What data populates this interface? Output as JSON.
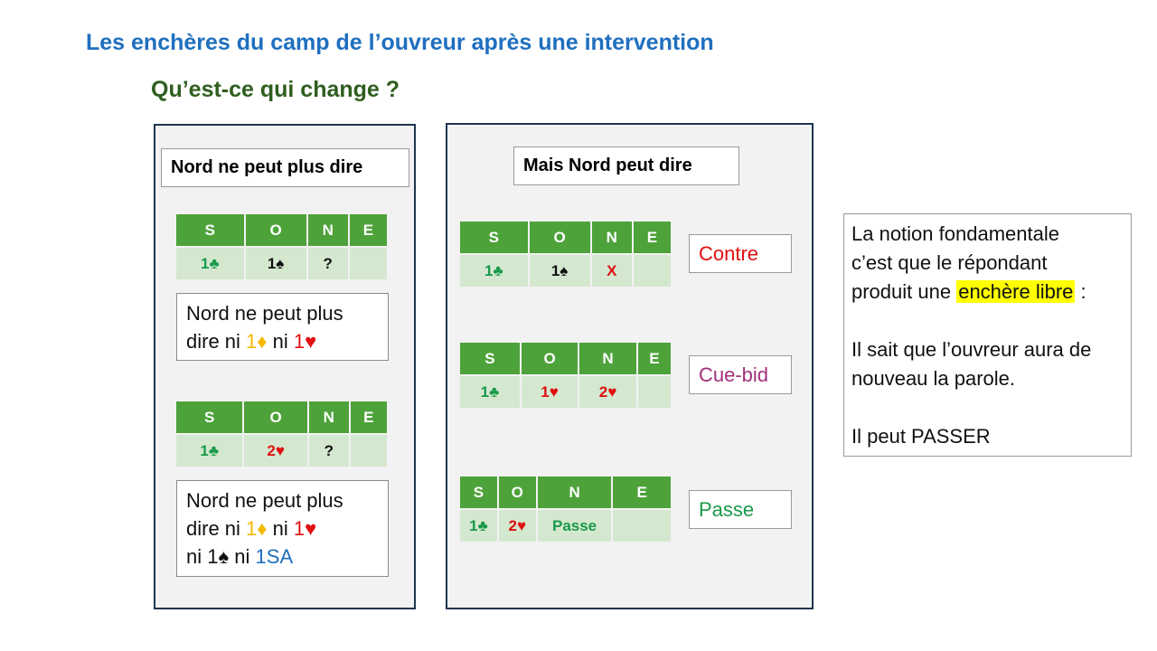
{
  "header": {
    "title": "Les enchères du camp de l’ouvreur après une intervention",
    "subtitle": "Qu’est-ce qui change ?"
  },
  "columns": [
    "S",
    "O",
    "N",
    "E"
  ],
  "left_panel": {
    "heading": "Nord ne peut plus dire",
    "table1": {
      "cells": [
        "1♣",
        "1♠",
        "?",
        ""
      ]
    },
    "note1": {
      "line1": "Nord ne peut plus",
      "line2_a": "dire ni ",
      "d1": "1♦",
      "mid": " ni ",
      "h1": "1♥"
    },
    "table2": {
      "cells": [
        "1♣",
        "2♥",
        "?",
        ""
      ]
    },
    "note2": {
      "line1": "Nord ne peut plus",
      "line2_a": "dire ni ",
      "d1": "1♦",
      "mid": " ni ",
      "h1": "1♥",
      "line3_a": "ni ",
      "s1": "1♠",
      "line3_b": " ni ",
      "nt": "1SA"
    }
  },
  "right_panel": {
    "heading": "Mais Nord peut dire",
    "table1": {
      "cells": [
        "1♣",
        "1♠",
        "X",
        ""
      ]
    },
    "label1": "Contre",
    "table2": {
      "cells": [
        "1♣",
        "1♥",
        "2♥",
        ""
      ]
    },
    "label2": "Cue-bid",
    "table3": {
      "cells": [
        "1♣",
        "2♥",
        "Passe",
        ""
      ]
    },
    "label3": "Passe"
  },
  "info": {
    "line1": "La notion fondamentale",
    "line2": "c’est que le répondant",
    "line3_a": "produit une ",
    "line3_hl": "enchère libre",
    "line3_b": " :",
    "line4": "Il sait que l’ouvreur aura de",
    "line5": "nouveau la parole.",
    "line6": "Il peut PASSER"
  },
  "colors": {
    "title": "#1f6fbf",
    "subtitle": "#2f5e1e",
    "table_header": "#4ea23a",
    "table_row": "#d4e8d0",
    "clubs": "#1a9a4a",
    "hearts": "#e01010",
    "diamonds": "#f5b800",
    "no_trump": "#1f6fbf",
    "cue_bid": "#a0307a",
    "highlight": "#ffff00"
  }
}
